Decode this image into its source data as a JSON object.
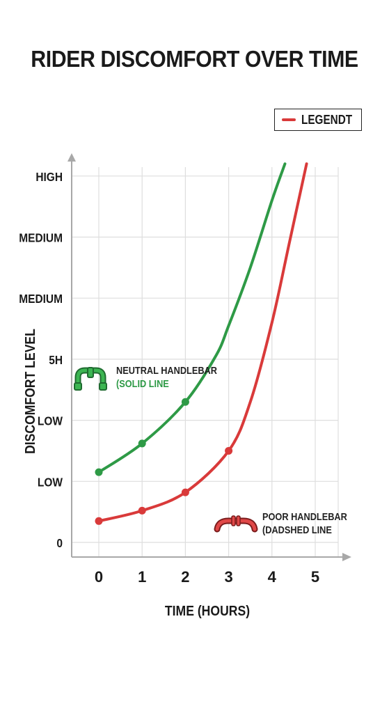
{
  "chart_data": {
    "type": "line",
    "title": "RIDER DISCOMFORT OVER TIME",
    "xlabel": "TIME (HOURS)",
    "ylabel": "DISCOMFORT LEVEL",
    "x_ticks": [
      "0",
      "1",
      "2",
      "3",
      "4",
      "5"
    ],
    "y_ticks": [
      "0",
      "LOW",
      "LOW",
      "5H",
      "MEDIUM",
      "MEDIUM",
      "HIGH"
    ],
    "xlim": [
      0,
      5.5
    ],
    "ylim": [
      0,
      6
    ],
    "grid": true,
    "legend": {
      "position": "top-right",
      "entries": [
        {
          "label": "LEGENDT",
          "color": "#d93a3a"
        }
      ]
    },
    "series": [
      {
        "color": "#2e9a46",
        "markers": [
          [
            0,
            1.15
          ],
          [
            1,
            1.62
          ],
          [
            2,
            2.3
          ]
        ],
        "curve": [
          [
            0,
            1.15
          ],
          [
            1,
            1.62
          ],
          [
            2,
            2.3
          ],
          [
            2.7,
            3.05
          ],
          [
            3,
            3.55
          ],
          [
            3.5,
            4.5
          ],
          [
            4,
            5.6
          ],
          [
            4.3,
            6.2
          ]
        ]
      },
      {
        "color": "#d93a3a",
        "markers": [
          [
            0,
            0.35
          ],
          [
            1,
            0.52
          ],
          [
            2,
            0.82
          ],
          [
            3,
            1.5
          ]
        ],
        "curve": [
          [
            0,
            0.35
          ],
          [
            1,
            0.52
          ],
          [
            2,
            0.82
          ],
          [
            3,
            1.5
          ],
          [
            3.5,
            2.3
          ],
          [
            4,
            3.6
          ],
          [
            4.4,
            4.9
          ],
          [
            4.8,
            6.2
          ]
        ]
      }
    ],
    "annotations": [
      {
        "line1": "NEUTRAL HANDLEBAR",
        "line2": "(SOLID LINE",
        "color": "#2e9a46"
      },
      {
        "line1": "POOR HANDLEBAR",
        "line2": "(DADSHED LINE",
        "color": "#222222"
      }
    ]
  },
  "icons": {
    "neutral": "neutral-handlebar-icon",
    "poor": "poor-handlebar-icon"
  }
}
